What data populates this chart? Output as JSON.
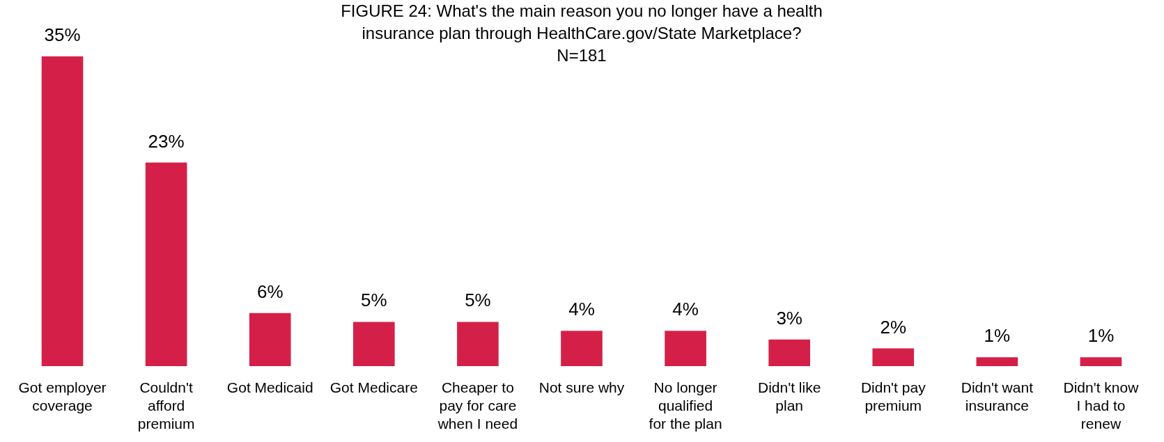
{
  "chart_data": {
    "type": "bar",
    "title": "FIGURE 24: What's the main reason you no longer have a health insurance plan through HealthCare.gov/State Marketplace?  N=181",
    "categories": [
      "Got employer coverage",
      "Couldn't afford premium",
      "Got Medicaid",
      "Got Medicare",
      "Cheaper to pay for care when I need",
      "Not sure why",
      "No longer qualified for the plan",
      "Didn't like plan",
      "Didn't pay premium",
      "Didn't want insurance",
      "Didn't know I had to renew"
    ],
    "values": [
      35,
      23,
      6,
      5,
      5,
      4,
      4,
      3,
      2,
      1,
      1
    ],
    "value_labels": [
      "35%",
      "23%",
      "6%",
      "5%",
      "5%",
      "4%",
      "4%",
      "3%",
      "2%",
      "1%",
      "1%"
    ],
    "color": "#d42048"
  }
}
